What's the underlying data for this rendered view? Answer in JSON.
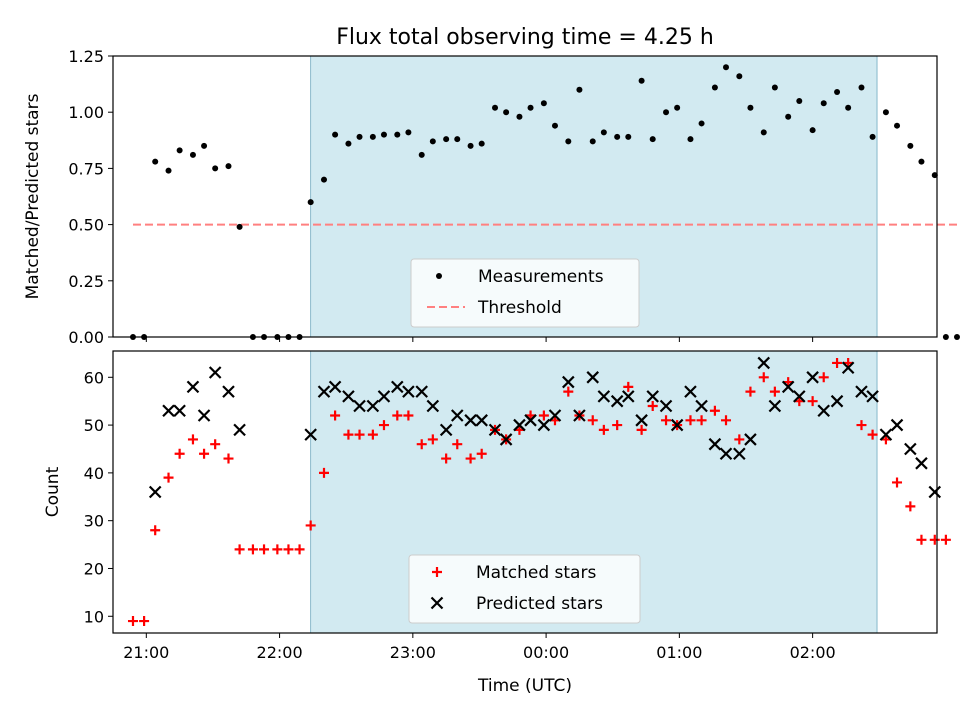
{
  "title": "Flux total observing time = 4.25 h",
  "chart_data": [
    {
      "type": "scatter",
      "panel": "top",
      "ylabel": "Matched/Predicted stars",
      "xlim": [
        "20:45",
        "02:56"
      ],
      "ylim": [
        0,
        1.25
      ],
      "yticks": [
        "0.00",
        "0.25",
        "0.50",
        "0.75",
        "1.00",
        "1.25"
      ],
      "observing_window": {
        "start": "22:14",
        "end": "02:29",
        "color": "#add8e6"
      },
      "legend": {
        "placement": "bottom-center",
        "entries": [
          "Measurements",
          "Threshold"
        ]
      },
      "series": [
        {
          "name": "Measurements",
          "marker": "dot",
          "color": "#000000",
          "points": [
            [
              "20:54",
              0.0
            ],
            [
              "20:59",
              0.0
            ],
            [
              "21:04",
              0.78
            ],
            [
              "21:10",
              0.74
            ],
            [
              "21:15",
              0.83
            ],
            [
              "21:21",
              0.81
            ],
            [
              "21:26",
              0.85
            ],
            [
              "21:31",
              0.75
            ],
            [
              "21:37",
              0.76
            ],
            [
              "21:42",
              0.49
            ],
            [
              "21:48",
              0.0
            ],
            [
              "21:53",
              0.0
            ],
            [
              "21:59",
              0.0
            ],
            [
              "22:04",
              0.0
            ],
            [
              "22:09",
              0.0
            ],
            [
              "22:14",
              0.6
            ],
            [
              "22:20",
              0.7
            ],
            [
              "22:25",
              0.9
            ],
            [
              "22:31",
              0.86
            ],
            [
              "22:36",
              0.89
            ],
            [
              "22:42",
              0.89
            ],
            [
              "22:47",
              0.9
            ],
            [
              "22:53",
              0.9
            ],
            [
              "22:58",
              0.91
            ],
            [
              "23:04",
              0.81
            ],
            [
              "23:09",
              0.87
            ],
            [
              "23:15",
              0.88
            ],
            [
              "23:20",
              0.88
            ],
            [
              "23:26",
              0.85
            ],
            [
              "23:31",
              0.86
            ],
            [
              "23:37",
              1.02
            ],
            [
              "23:42",
              1.0
            ],
            [
              "23:48",
              0.98
            ],
            [
              "23:53",
              1.02
            ],
            [
              "23:59",
              1.04
            ],
            [
              "00:04",
              0.94
            ],
            [
              "00:10",
              0.87
            ],
            [
              "00:15",
              1.1
            ],
            [
              "00:21",
              0.87
            ],
            [
              "00:26",
              0.91
            ],
            [
              "00:32",
              0.89
            ],
            [
              "00:37",
              0.89
            ],
            [
              "00:43",
              1.14
            ],
            [
              "00:48",
              0.88
            ],
            [
              "00:54",
              1.0
            ],
            [
              "00:59",
              1.02
            ],
            [
              "01:05",
              0.88
            ],
            [
              "01:10",
              0.95
            ],
            [
              "01:16",
              1.11
            ],
            [
              "01:21",
              1.2
            ],
            [
              "01:27",
              1.16
            ],
            [
              "01:32",
              1.02
            ],
            [
              "01:38",
              0.91
            ],
            [
              "01:43",
              1.11
            ],
            [
              "01:49",
              0.98
            ],
            [
              "01:54",
              1.05
            ],
            [
              "02:00",
              0.92
            ],
            [
              "02:05",
              1.04
            ],
            [
              "02:11",
              1.09
            ],
            [
              "02:16",
              1.02
            ],
            [
              "02:22",
              1.11
            ],
            [
              "02:27",
              0.89
            ],
            [
              "02:33",
              1.0
            ],
            [
              "02:38",
              0.94
            ],
            [
              "02:44",
              0.85
            ],
            [
              "02:49",
              0.78
            ],
            [
              "02:55",
              0.72
            ],
            [
              "03:00",
              0.0
            ],
            [
              "03:05",
              0.0
            ]
          ]
        },
        {
          "name": "Threshold",
          "style": "dashed",
          "color": "#ff8080",
          "x": [
            "20:54",
            "03:05"
          ],
          "y": [
            0.5,
            0.5
          ]
        }
      ]
    },
    {
      "type": "scatter",
      "panel": "bottom",
      "xlabel": "Time (UTC)",
      "ylabel": "Count",
      "ylim": [
        6.5,
        65.5
      ],
      "yticks": [
        "10",
        "20",
        "30",
        "40",
        "50",
        "60"
      ],
      "xticks": [
        "21:00",
        "22:00",
        "23:00",
        "00:00",
        "01:00",
        "02:00"
      ],
      "legend": {
        "placement": "bottom-center",
        "entries": [
          "Matched stars",
          "Predicted stars"
        ]
      },
      "series": [
        {
          "name": "Matched stars",
          "marker": "plus",
          "color": "#ff0000",
          "points": [
            [
              "20:54",
              9
            ],
            [
              "20:59",
              9
            ],
            [
              "21:04",
              28
            ],
            [
              "21:10",
              39
            ],
            [
              "21:15",
              44
            ],
            [
              "21:21",
              47
            ],
            [
              "21:26",
              44
            ],
            [
              "21:31",
              46
            ],
            [
              "21:37",
              43
            ],
            [
              "21:42",
              24
            ],
            [
              "21:48",
              24
            ],
            [
              "21:53",
              24
            ],
            [
              "21:59",
              24
            ],
            [
              "22:04",
              24
            ],
            [
              "22:09",
              24
            ],
            [
              "22:14",
              29
            ],
            [
              "22:20",
              40
            ],
            [
              "22:25",
              52
            ],
            [
              "22:31",
              48
            ],
            [
              "22:36",
              48
            ],
            [
              "22:42",
              48
            ],
            [
              "22:47",
              50
            ],
            [
              "22:53",
              52
            ],
            [
              "22:58",
              52
            ],
            [
              "23:04",
              46
            ],
            [
              "23:09",
              47
            ],
            [
              "23:15",
              43
            ],
            [
              "23:20",
              46
            ],
            [
              "23:26",
              43
            ],
            [
              "23:31",
              44
            ],
            [
              "23:37",
              49
            ],
            [
              "23:42",
              47
            ],
            [
              "23:48",
              49
            ],
            [
              "23:53",
              52
            ],
            [
              "23:59",
              52
            ],
            [
              "00:04",
              51
            ],
            [
              "00:10",
              57
            ],
            [
              "00:15",
              52
            ],
            [
              "00:21",
              51
            ],
            [
              "00:26",
              49
            ],
            [
              "00:32",
              50
            ],
            [
              "00:37",
              58
            ],
            [
              "00:43",
              49
            ],
            [
              "00:48",
              54
            ],
            [
              "00:54",
              51
            ],
            [
              "00:59",
              50
            ],
            [
              "01:05",
              51
            ],
            [
              "01:10",
              51
            ],
            [
              "01:16",
              53
            ],
            [
              "01:21",
              51
            ],
            [
              "01:27",
              47
            ],
            [
              "01:32",
              57
            ],
            [
              "01:38",
              60
            ],
            [
              "01:43",
              57
            ],
            [
              "01:49",
              59
            ],
            [
              "01:54",
              55
            ],
            [
              "02:00",
              55
            ],
            [
              "02:05",
              60
            ],
            [
              "02:11",
              63
            ],
            [
              "02:16",
              63
            ],
            [
              "02:22",
              50
            ],
            [
              "02:27",
              48
            ],
            [
              "02:33",
              47
            ],
            [
              "02:38",
              38
            ],
            [
              "02:44",
              33
            ],
            [
              "02:49",
              26
            ],
            [
              "02:55",
              26
            ],
            [
              "03:00",
              26
            ]
          ]
        },
        {
          "name": "Predicted stars",
          "marker": "x",
          "color": "#000000",
          "points": [
            [
              "21:04",
              36
            ],
            [
              "21:10",
              53
            ],
            [
              "21:15",
              53
            ],
            [
              "21:21",
              58
            ],
            [
              "21:26",
              52
            ],
            [
              "21:31",
              61
            ],
            [
              "21:37",
              57
            ],
            [
              "21:42",
              49
            ],
            [
              "22:14",
              48
            ],
            [
              "22:20",
              57
            ],
            [
              "22:25",
              58
            ],
            [
              "22:31",
              56
            ],
            [
              "22:36",
              54
            ],
            [
              "22:42",
              54
            ],
            [
              "22:47",
              56
            ],
            [
              "22:53",
              58
            ],
            [
              "22:58",
              57
            ],
            [
              "23:04",
              57
            ],
            [
              "23:09",
              54
            ],
            [
              "23:15",
              49
            ],
            [
              "23:20",
              52
            ],
            [
              "23:26",
              51
            ],
            [
              "23:31",
              51
            ],
            [
              "23:37",
              49
            ],
            [
              "23:42",
              47
            ],
            [
              "23:48",
              50
            ],
            [
              "23:53",
              51
            ],
            [
              "23:59",
              50
            ],
            [
              "00:04",
              52
            ],
            [
              "00:10",
              59
            ],
            [
              "00:15",
              52
            ],
            [
              "00:21",
              60
            ],
            [
              "00:26",
              56
            ],
            [
              "00:32",
              55
            ],
            [
              "00:37",
              56
            ],
            [
              "00:43",
              51
            ],
            [
              "00:48",
              56
            ],
            [
              "00:54",
              54
            ],
            [
              "00:59",
              50
            ],
            [
              "01:05",
              57
            ],
            [
              "01:10",
              54
            ],
            [
              "01:16",
              46
            ],
            [
              "01:21",
              44
            ],
            [
              "01:27",
              44
            ],
            [
              "01:32",
              47
            ],
            [
              "01:38",
              63
            ],
            [
              "01:43",
              54
            ],
            [
              "01:49",
              58
            ],
            [
              "01:54",
              56
            ],
            [
              "02:00",
              60
            ],
            [
              "02:05",
              53
            ],
            [
              "02:11",
              55
            ],
            [
              "02:16",
              62
            ],
            [
              "02:22",
              57
            ],
            [
              "02:27",
              56
            ],
            [
              "02:33",
              48
            ],
            [
              "02:38",
              50
            ],
            [
              "02:44",
              45
            ],
            [
              "02:49",
              42
            ],
            [
              "02:55",
              36
            ]
          ]
        }
      ]
    }
  ]
}
